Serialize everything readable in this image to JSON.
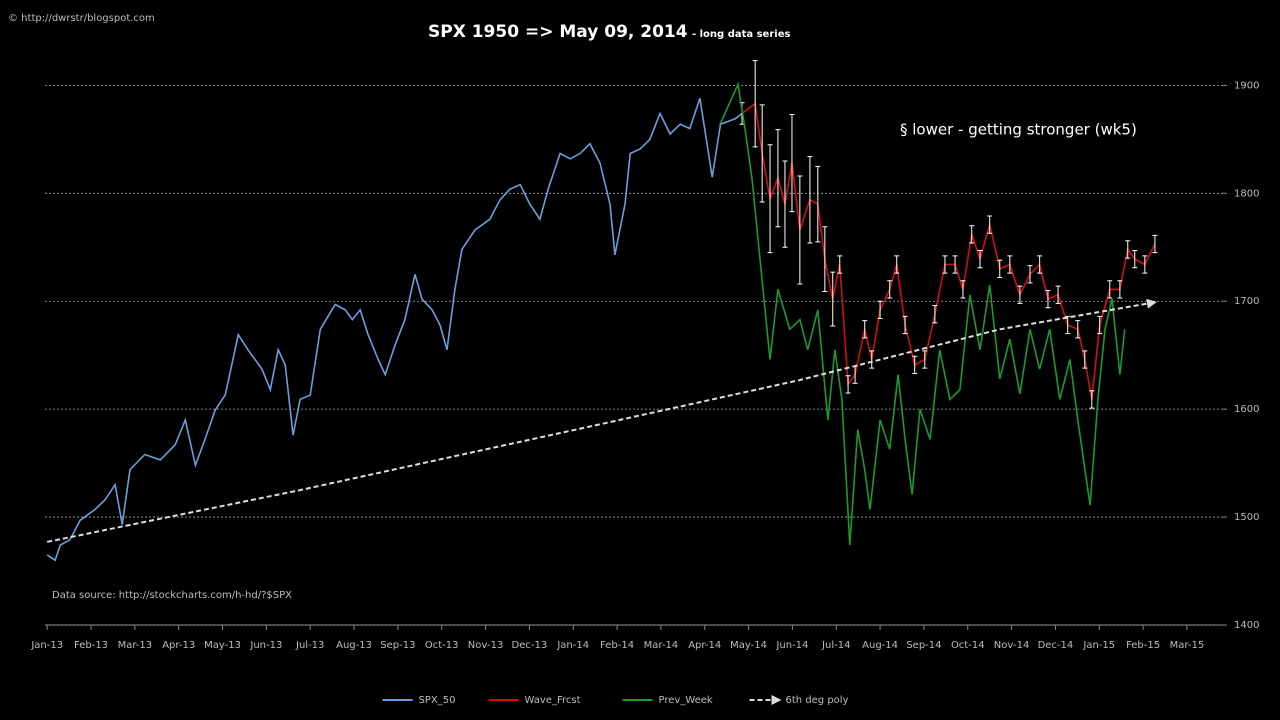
{
  "chart_data": {
    "type": "line",
    "credit": "© http://dwrstr/blogspot.com",
    "title": "SPX 1950 => May 09, 2014",
    "subtitle": "- long data series",
    "annotation": "§ lower - getting stronger (wk5)",
    "source": "Data source: http://stockcharts.com/h-hd/?$SPX",
    "xlim": [
      -0.05,
      26.8
    ],
    "ylim": [
      1400,
      1905
    ],
    "xticks": [
      {
        "value": 0,
        "label": "Jan-13"
      },
      {
        "value": 1,
        "label": "Feb-13"
      },
      {
        "value": 2,
        "label": "Mar-13"
      },
      {
        "value": 3,
        "label": "Apr-13"
      },
      {
        "value": 4,
        "label": "May-13"
      },
      {
        "value": 5,
        "label": "Jun-13"
      },
      {
        "value": 6,
        "label": "Jul-13"
      },
      {
        "value": 7,
        "label": "Aug-13"
      },
      {
        "value": 8,
        "label": "Sep-13"
      },
      {
        "value": 9,
        "label": "Oct-13"
      },
      {
        "value": 10,
        "label": "Nov-13"
      },
      {
        "value": 11,
        "label": "Dec-13"
      },
      {
        "value": 12,
        "label": "Jan-14"
      },
      {
        "value": 13,
        "label": "Feb-14"
      },
      {
        "value": 14,
        "label": "Mar-14"
      },
      {
        "value": 15,
        "label": "Apr-14"
      },
      {
        "value": 16,
        "label": "May-14"
      },
      {
        "value": 17,
        "label": "Jun-14"
      },
      {
        "value": 18,
        "label": "Jul-14"
      },
      {
        "value": 19,
        "label": "Aug-14"
      },
      {
        "value": 20,
        "label": "Sep-14"
      },
      {
        "value": 21,
        "label": "Oct-14"
      },
      {
        "value": 22,
        "label": "Nov-14"
      },
      {
        "value": 23,
        "label": "Dec-14"
      },
      {
        "value": 24,
        "label": "Jan-15"
      },
      {
        "value": 25,
        "label": "Feb-15"
      },
      {
        "value": 26,
        "label": "Mar-15"
      }
    ],
    "yticks": [
      1400,
      1500,
      1600,
      1700,
      1800,
      1900
    ],
    "grid": true,
    "legend": "bottom",
    "series": [
      {
        "name": "SPX_50",
        "color": "#6a9fdc",
        "x": [
          0,
          0.18,
          0.3,
          0.52,
          0.75,
          1.09,
          1.32,
          1.55,
          1.71,
          1.89,
          2.23,
          2.58,
          2.92,
          3.15,
          3.38,
          3.6,
          3.83,
          4.06,
          4.36,
          4.58,
          4.9,
          5.09,
          5.27,
          5.43,
          5.61,
          5.77,
          6.0,
          6.23,
          6.57,
          6.8,
          6.96,
          7.14,
          7.32,
          7.55,
          7.71,
          7.94,
          8.16,
          8.39,
          8.55,
          8.78,
          8.96,
          9.12,
          9.3,
          9.46,
          9.76,
          10.1,
          10.33,
          10.56,
          10.79,
          11.01,
          11.24,
          11.43,
          11.7,
          11.93,
          12.16,
          12.38,
          12.61,
          12.84,
          12.95,
          13.18,
          13.3,
          13.52,
          13.75,
          13.98,
          14.21,
          14.44,
          14.66,
          14.89,
          15.17,
          15.36,
          15.69,
          15.85
        ],
        "values": [
          1465,
          1460,
          1474,
          1479,
          1497,
          1507,
          1516,
          1530,
          1493,
          1544,
          1558,
          1553,
          1567,
          1590,
          1548,
          1572,
          1599,
          1613,
          1669,
          1655,
          1637,
          1618,
          1655,
          1641,
          1576,
          1609,
          1613,
          1674,
          1697,
          1692,
          1683,
          1692,
          1669,
          1646,
          1632,
          1660,
          1683,
          1725,
          1702,
          1692,
          1678,
          1655,
          1711,
          1748,
          1766,
          1776,
          1794,
          1804,
          1808,
          1790,
          1776,
          1804,
          1837,
          1832,
          1837,
          1846,
          1828,
          1790,
          1743,
          1790,
          1837,
          1841,
          1850,
          1874,
          1855,
          1864,
          1860,
          1888,
          1815,
          1864,
          1869,
          1874
        ]
      },
      {
        "name": "Wave_Frcst",
        "color": "#d01010",
        "x": [
          15.85,
          16.15,
          16.31,
          16.49,
          16.67,
          16.83,
          16.99,
          17.17,
          17.4,
          17.58,
          17.74,
          17.92,
          18.08,
          18.27,
          18.43,
          18.65,
          18.81,
          19.0,
          19.22,
          19.38,
          19.57,
          19.79,
          20.02,
          20.25,
          20.48,
          20.71,
          20.89,
          21.09,
          21.28,
          21.5,
          21.73,
          21.96,
          22.19,
          22.42,
          22.64,
          22.83,
          23.06,
          23.28,
          23.51,
          23.67,
          23.83,
          24.01,
          24.24,
          24.47,
          24.65,
          24.81,
          25.04,
          25.27
        ],
        "values": [
          1874,
          1883,
          1837,
          1795,
          1814,
          1790,
          1828,
          1766,
          1794,
          1790,
          1739,
          1702,
          1734,
          1623,
          1632,
          1674,
          1646,
          1692,
          1711,
          1734,
          1678,
          1641,
          1646,
          1688,
          1734,
          1734,
          1711,
          1762,
          1739,
          1771,
          1730,
          1734,
          1706,
          1725,
          1734,
          1702,
          1706,
          1678,
          1674,
          1646,
          1609,
          1678,
          1711,
          1711,
          1748,
          1739,
          1734,
          1753
        ],
        "errors": [
          10,
          40,
          45,
          50,
          45,
          40,
          45,
          50,
          40,
          35,
          30,
          25,
          8,
          8,
          8,
          8,
          8,
          8,
          8,
          8,
          8,
          8,
          8,
          8,
          8,
          8,
          8,
          8,
          8,
          8,
          8,
          8,
          8,
          8,
          8,
          8,
          8,
          8,
          8,
          8,
          8,
          8,
          8,
          8,
          8,
          8,
          8,
          8
        ]
      },
      {
        "name": "Prev_Week",
        "color": "#1e9a2a",
        "x": [
          15.35,
          15.76,
          15.92,
          16.08,
          16.26,
          16.49,
          16.67,
          16.94,
          17.17,
          17.35,
          17.58,
          17.81,
          17.97,
          18.13,
          18.31,
          18.49,
          18.65,
          18.77,
          19.0,
          19.22,
          19.41,
          19.57,
          19.73,
          19.91,
          20.14,
          20.36,
          20.59,
          20.82,
          21.05,
          21.28,
          21.5,
          21.73,
          21.96,
          22.19,
          22.42,
          22.64,
          22.87,
          23.1,
          23.33,
          23.51,
          23.79,
          23.97,
          24.13,
          24.29,
          24.47,
          24.58
        ],
        "values": [
          1864,
          1901,
          1859,
          1813,
          1739,
          1646,
          1711,
          1674,
          1683,
          1655,
          1692,
          1590,
          1655,
          1609,
          1474,
          1581,
          1544,
          1507,
          1590,
          1563,
          1632,
          1572,
          1521,
          1600,
          1572,
          1655,
          1609,
          1618,
          1706,
          1655,
          1715,
          1628,
          1665,
          1614,
          1674,
          1637,
          1674,
          1609,
          1646,
          1590,
          1511,
          1609,
          1674,
          1702,
          1632,
          1674
        ]
      },
      {
        "name": "6th deg poly",
        "color": "#dddddd",
        "dashed": true,
        "arrow": true,
        "x": [
          0,
          5.77,
          12.61,
          17.17,
          21.73,
          25.27
        ],
        "values": [
          1477,
          1525,
          1586,
          1627,
          1674,
          1699
        ]
      }
    ]
  }
}
